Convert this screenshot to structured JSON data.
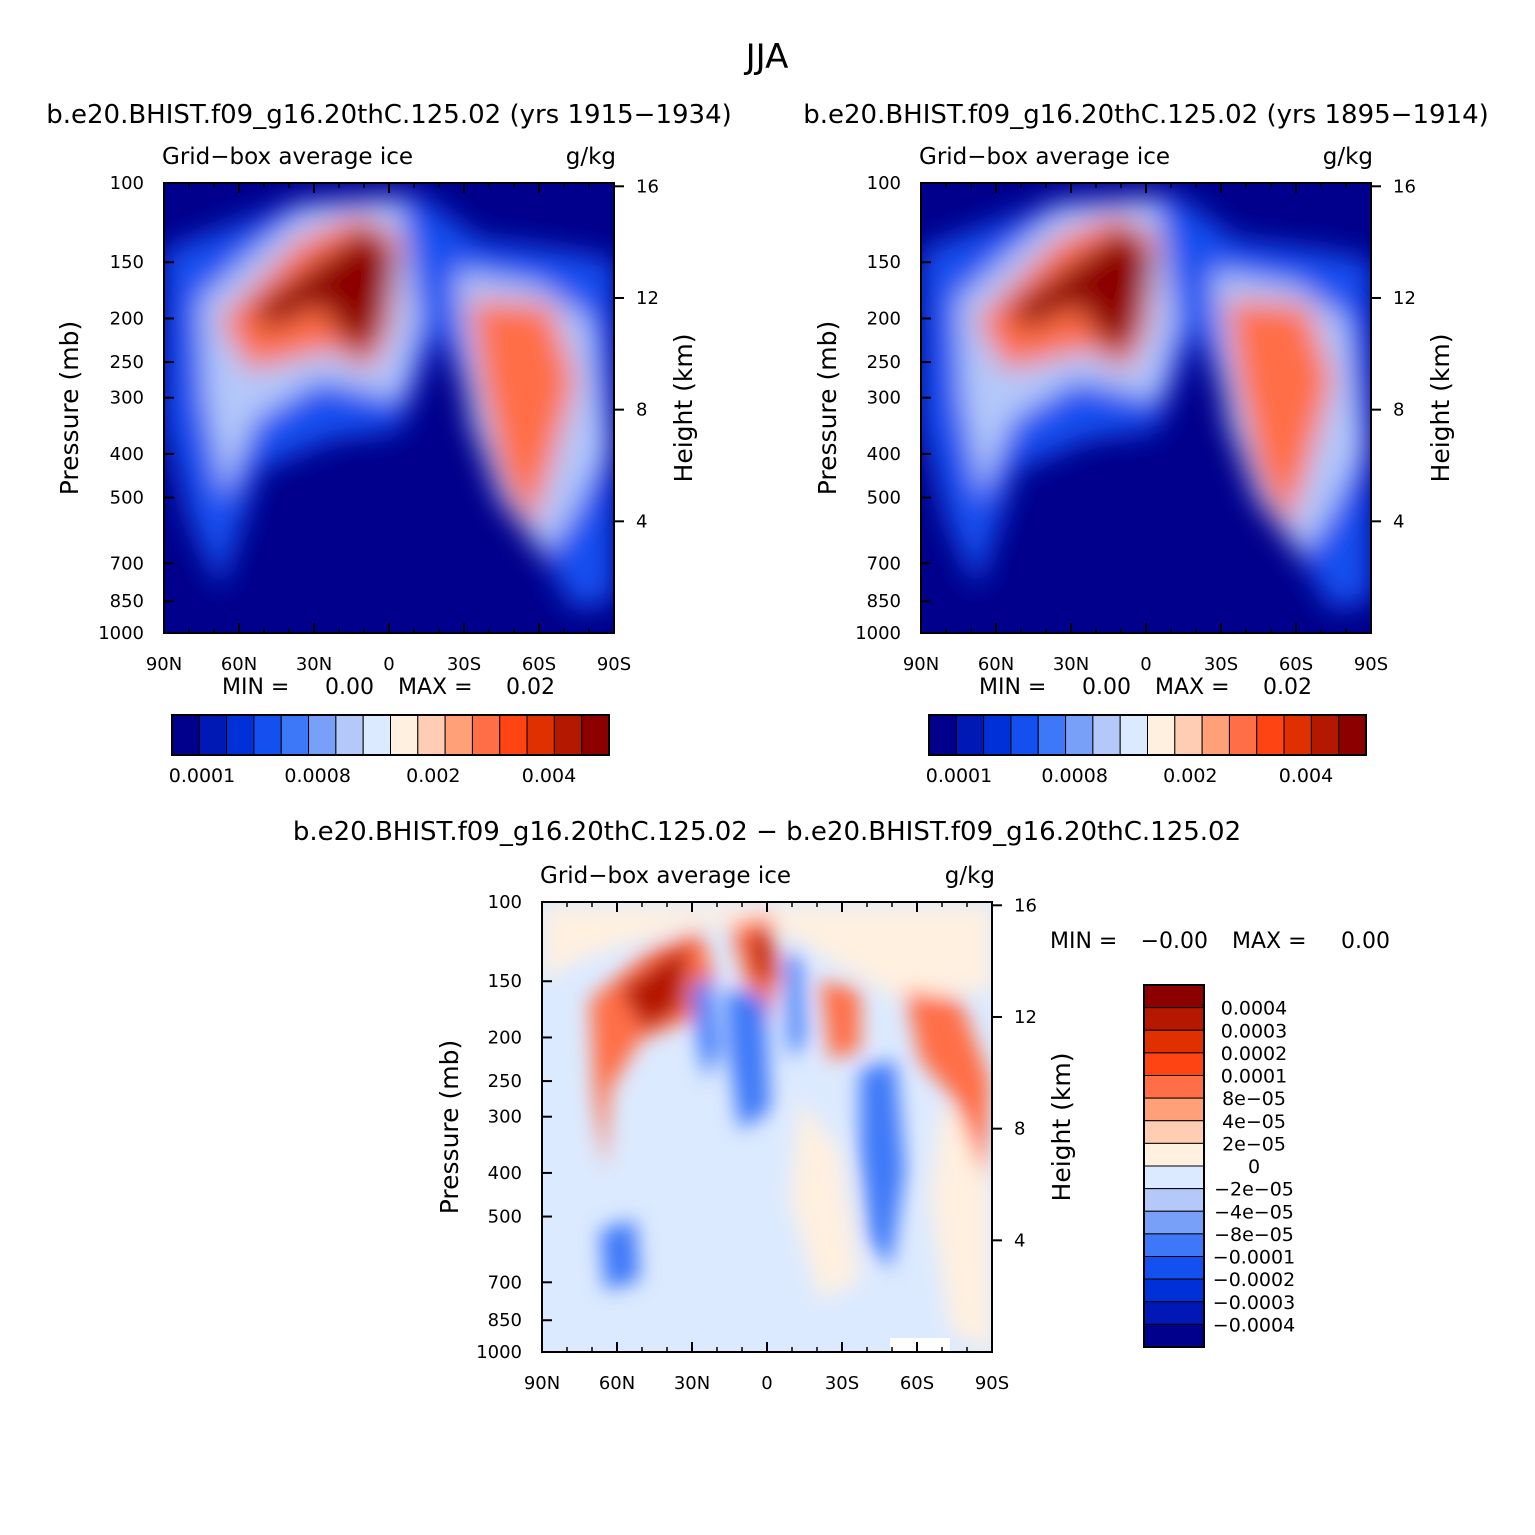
{
  "figure_title": "JJA",
  "colors": {
    "main_scale": [
      "#00008c",
      "#0018b4",
      "#0030d8",
      "#1450f0",
      "#3c78f8",
      "#78a0f8",
      "#b4c8fa",
      "#dceaff",
      "#fff0e0",
      "#ffcdb4",
      "#ffa078",
      "#ff6e46",
      "#ff4414",
      "#e03000",
      "#b41800",
      "#8c0000"
    ],
    "diff_scale": [
      "#8c0000",
      "#b41800",
      "#e03000",
      "#ff4414",
      "#ff6e46",
      "#ffa078",
      "#ffcdb4",
      "#fff0e0",
      "#dceaff",
      "#b4c8fa",
      "#78a0f8",
      "#3c78f8",
      "#1450f0",
      "#0030d8",
      "#0018b4",
      "#00008c"
    ]
  },
  "chart_data": [
    {
      "type": "heatmap",
      "panel": "top-left",
      "title": "b.e20.BHIST.f09_g16.20thC.125.02 (yrs 1915−1934)",
      "variable": "Grid−box average ice",
      "units": "g/kg",
      "ylabel": "Pressure (mb)",
      "ylabel_right": "Height (km)",
      "x_ticks": [
        "90N",
        "60N",
        "30N",
        "0",
        "30S",
        "60S",
        "90S"
      ],
      "x_range": [
        90,
        -90
      ],
      "y_ticks": [
        "100",
        "150",
        "200",
        "250",
        "300",
        "400",
        "500",
        "700",
        "850",
        "1000"
      ],
      "y_range": [
        100,
        1000
      ],
      "height_ticks": [
        "16",
        "12",
        "8",
        "4"
      ],
      "min_label": "MIN =",
      "min_value": "0.00",
      "max_label": "MAX =",
      "max_value": "0.02",
      "colorbar_labels": [
        "0.0001",
        "0.0008",
        "0.002",
        "0.004"
      ]
    },
    {
      "type": "heatmap",
      "panel": "top-right",
      "title": "b.e20.BHIST.f09_g16.20thC.125.02 (yrs 1895−1914)",
      "variable": "Grid−box average ice",
      "units": "g/kg",
      "ylabel": "Pressure (mb)",
      "ylabel_right": "Height (km)",
      "x_ticks": [
        "90N",
        "60N",
        "30N",
        "0",
        "30S",
        "60S",
        "90S"
      ],
      "x_range": [
        90,
        -90
      ],
      "y_ticks": [
        "100",
        "150",
        "200",
        "250",
        "300",
        "400",
        "500",
        "700",
        "850",
        "1000"
      ],
      "y_range": [
        100,
        1000
      ],
      "height_ticks": [
        "16",
        "12",
        "8",
        "4"
      ],
      "min_label": "MIN =",
      "min_value": "0.00",
      "max_label": "MAX =",
      "max_value": "0.02",
      "colorbar_labels": [
        "0.0001",
        "0.0008",
        "0.002",
        "0.004"
      ]
    },
    {
      "type": "heatmap",
      "panel": "bottom",
      "title": "b.e20.BHIST.f09_g16.20thC.125.02 − b.e20.BHIST.f09_g16.20thC.125.02",
      "variable": "Grid−box average ice",
      "units": "g/kg",
      "ylabel": "Pressure (mb)",
      "ylabel_right": "Height (km)",
      "x_ticks": [
        "90N",
        "60N",
        "30N",
        "0",
        "30S",
        "60S",
        "90S"
      ],
      "x_range": [
        90,
        -90
      ],
      "y_ticks": [
        "100",
        "150",
        "200",
        "250",
        "300",
        "400",
        "500",
        "700",
        "850",
        "1000"
      ],
      "y_range": [
        100,
        1000
      ],
      "height_ticks": [
        "16",
        "12",
        "8",
        "4"
      ],
      "min_label": "MIN =",
      "min_value": "−0.00",
      "max_label": "MAX =",
      "max_value": "0.00",
      "colorbar_labels": [
        "0.0004",
        "0.0003",
        "0.0002",
        "0.0001",
        "8e−05",
        "4e−05",
        "2e−05",
        "0",
        "−2e−05",
        "−4e−05",
        "−8e−05",
        "−0.0001",
        "−0.0002",
        "−0.0003",
        "−0.0004"
      ]
    }
  ]
}
